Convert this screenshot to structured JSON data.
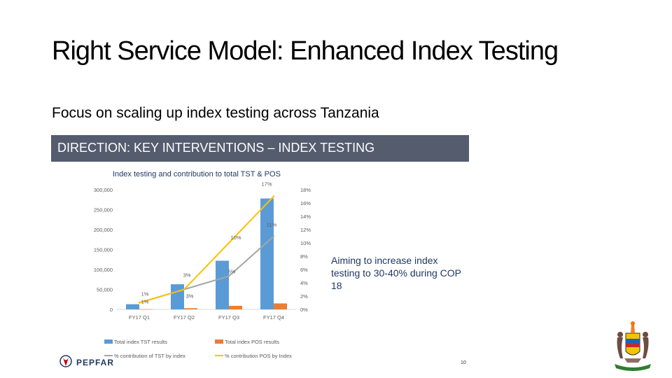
{
  "slide": {
    "title": "Right Service Model: Enhanced Index Testing",
    "subtitle": "Focus on scaling up index testing across Tanzania"
  },
  "embedded": {
    "header": "DIRECTION: KEY INTERVENTIONS – INDEX TESTING",
    "aim_text": "Aiming to increase index testing to 30-40% during COP 18",
    "logo": "PEPFAR",
    "page_number": "10"
  },
  "chart_data": {
    "type": "bar",
    "title": "Index testing and contribution to total TST & POS",
    "categories": [
      "FY17 Q1",
      "FY17 Q2",
      "FY17 Q3",
      "FY17 Q4"
    ],
    "series": [
      {
        "name": "Total index TST results",
        "type": "bar",
        "axis": "left",
        "color": "#5b9bd5",
        "values": [
          13000,
          63000,
          122000,
          278000
        ]
      },
      {
        "name": "Total index POS results",
        "type": "bar",
        "axis": "left",
        "color": "#ed7d31",
        "values": [
          500,
          3000,
          9000,
          15000
        ]
      },
      {
        "name": "% contribution of TST by index",
        "type": "line",
        "axis": "right",
        "color": "#a5a5a5",
        "values": [
          1,
          3,
          5,
          11
        ],
        "labels": [
          "1%",
          "3%",
          "5%",
          "11%"
        ]
      },
      {
        "name": "% contribution POS by Index",
        "type": "line",
        "axis": "right",
        "color": "#ffc000",
        "values": [
          1,
          3,
          10,
          17
        ],
        "labels": [
          "1%",
          "3%",
          "10%",
          "17%"
        ]
      }
    ],
    "y_left": {
      "ylim": [
        0,
        300000
      ],
      "ticks": [
        0,
        50000,
        100000,
        150000,
        200000,
        250000,
        300000
      ],
      "tick_labels": [
        "0",
        "50,000",
        "100,000",
        "150,000",
        "200,000",
        "250,000",
        "300,000"
      ]
    },
    "y_right": {
      "ylim": [
        0,
        18
      ],
      "ticks": [
        0,
        2,
        4,
        6,
        8,
        10,
        12,
        14,
        16,
        18
      ],
      "tick_labels": [
        "0%",
        "2%",
        "4%",
        "6%",
        "8%",
        "10%",
        "12%",
        "14%",
        "16%",
        "18%"
      ]
    },
    "grid": false,
    "legend_position": "bottom"
  }
}
